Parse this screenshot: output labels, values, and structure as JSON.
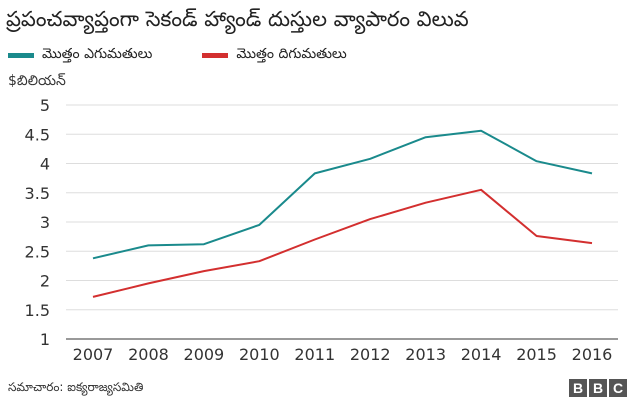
{
  "chart_data": {
    "type": "line",
    "title": "ప్రపంచవ్యాప్తంగా సెకండ్ హ్యాండ్ దుస్తుల వ్యాపారం విలువ",
    "ylabel": "$బిలియన్",
    "xlabel": "",
    "x": [
      "2007",
      "2008",
      "2009",
      "2010",
      "2011",
      "2012",
      "2013",
      "2014",
      "2015",
      "2016"
    ],
    "ylim": [
      1,
      5
    ],
    "yticks": [
      "5",
      "4.5",
      "4",
      "3.5",
      "3",
      "2.5",
      "2",
      "1.5",
      "1"
    ],
    "grid": true,
    "legend_position": "top-left",
    "series": [
      {
        "name": "మొత్తం ఎగుమతులు",
        "color": "#1a8a8c",
        "values": [
          2.38,
          2.6,
          2.62,
          2.95,
          3.83,
          4.08,
          4.45,
          4.56,
          4.04,
          3.83
        ]
      },
      {
        "name": "మొత్తం దిగుమతులు",
        "color": "#d32f2f",
        "values": [
          1.72,
          1.95,
          2.16,
          2.33,
          2.7,
          3.05,
          3.33,
          3.55,
          2.76,
          2.64
        ]
      }
    ]
  },
  "footer": {
    "source": "సమాచారం: ఐక్యరాజ్యసమితి",
    "logo_letters": [
      "B",
      "B",
      "C"
    ]
  }
}
